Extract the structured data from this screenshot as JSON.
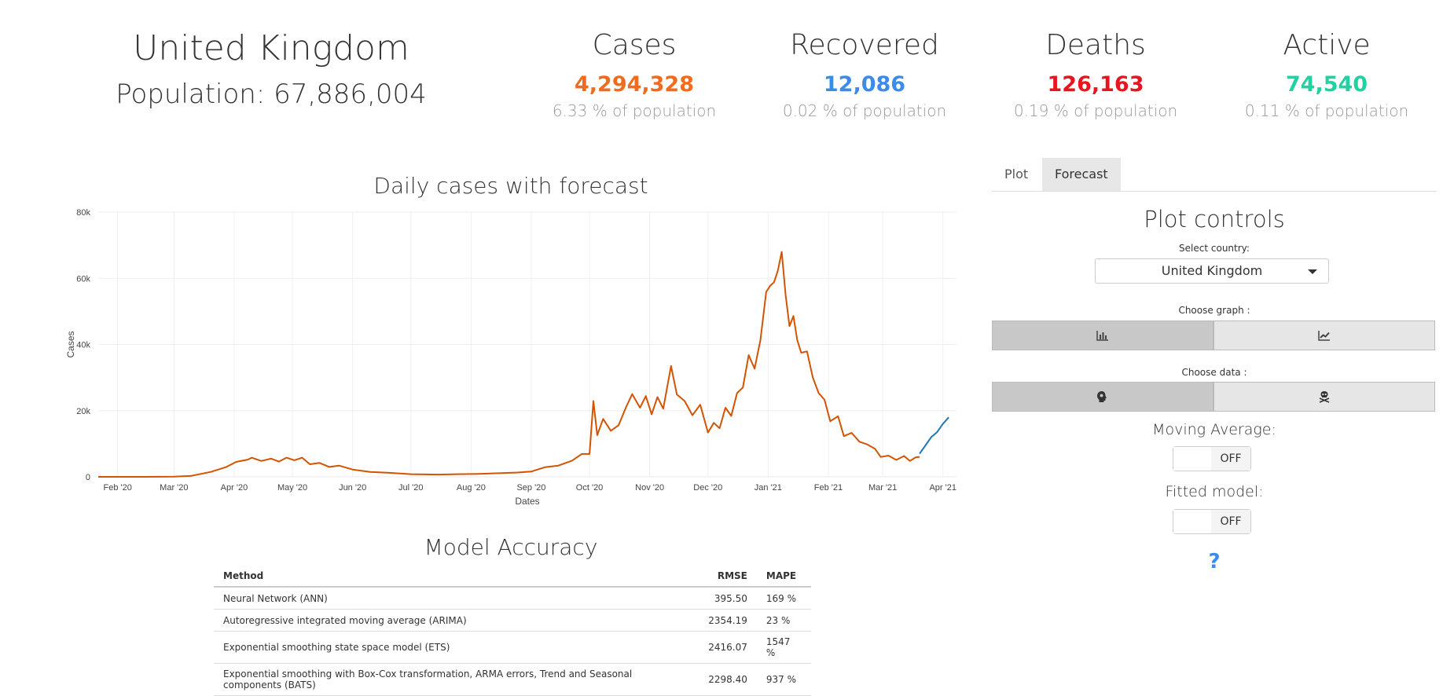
{
  "header": {
    "country": "United Kingdom",
    "population": "Population: 67,886,004",
    "stats": [
      {
        "label": "Cases",
        "value": "4,294,328",
        "pct": "6.33 % of population",
        "color": "#f26b1d"
      },
      {
        "label": "Recovered",
        "value": "12,086",
        "pct": "0.02 % of population",
        "color": "#3b8beb"
      },
      {
        "label": "Deaths",
        "value": "126,163",
        "pct": "0.19 % of population",
        "color": "#e8141f"
      },
      {
        "label": "Active",
        "value": "74,540",
        "pct": "0.11 % of population",
        "color": "#1fd2a1"
      }
    ]
  },
  "chart_data": {
    "type": "line",
    "title": "Daily cases with forecast",
    "xlabel": "Dates",
    "ylabel": "Cases",
    "ylim": [
      0,
      80000
    ],
    "yticks": [
      0,
      20000,
      40000,
      60000,
      80000
    ],
    "ytick_labels": [
      "0",
      "20k",
      "40k",
      "60k",
      "80k"
    ],
    "xticks": [
      "2020-02-01",
      "2020-03-01",
      "2020-04-01",
      "2020-05-01",
      "2020-06-01",
      "2020-07-01",
      "2020-08-01",
      "2020-09-01",
      "2020-10-01",
      "2020-11-01",
      "2020-12-01",
      "2021-01-01",
      "2021-02-01",
      "2021-03-01",
      "2021-04-01"
    ],
    "xtick_labels": [
      "Feb '20",
      "Mar '20",
      "Apr '20",
      "May '20",
      "Jun '20",
      "Jul '20",
      "Aug '20",
      "Sep '20",
      "Oct '20",
      "Nov '20",
      "Dec '20",
      "Jan '21",
      "Feb '21",
      "Mar '21",
      "Apr '21"
    ],
    "xlim": [
      "2020-01-22",
      "2021-04-08"
    ],
    "grid": true,
    "series": [
      {
        "color": "#d35400",
        "points": [
          [
            "2020-01-22",
            0
          ],
          [
            "2020-02-15",
            0
          ],
          [
            "2020-03-01",
            50
          ],
          [
            "2020-03-10",
            300
          ],
          [
            "2020-03-20",
            1500
          ],
          [
            "2020-03-28",
            3000
          ],
          [
            "2020-04-02",
            4500
          ],
          [
            "2020-04-08",
            5200
          ],
          [
            "2020-04-10",
            5800
          ],
          [
            "2020-04-15",
            4800
          ],
          [
            "2020-04-20",
            5500
          ],
          [
            "2020-04-24",
            4600
          ],
          [
            "2020-04-28",
            5800
          ],
          [
            "2020-05-02",
            5000
          ],
          [
            "2020-05-06",
            5800
          ],
          [
            "2020-05-10",
            3800
          ],
          [
            "2020-05-15",
            4200
          ],
          [
            "2020-05-20",
            3000
          ],
          [
            "2020-05-25",
            3400
          ],
          [
            "2020-06-01",
            2200
          ],
          [
            "2020-06-10",
            1500
          ],
          [
            "2020-06-20",
            1200
          ],
          [
            "2020-07-01",
            800
          ],
          [
            "2020-07-15",
            700
          ],
          [
            "2020-07-25",
            800
          ],
          [
            "2020-08-05",
            900
          ],
          [
            "2020-08-15",
            1100
          ],
          [
            "2020-08-25",
            1300
          ],
          [
            "2020-09-01",
            1600
          ],
          [
            "2020-09-08",
            2900
          ],
          [
            "2020-09-15",
            3400
          ],
          [
            "2020-09-22",
            4900
          ],
          [
            "2020-09-27",
            6900
          ],
          [
            "2020-10-01",
            6900
          ],
          [
            "2020-10-03",
            22900
          ],
          [
            "2020-10-05",
            12600
          ],
          [
            "2020-10-08",
            17500
          ],
          [
            "2020-10-12",
            13900
          ],
          [
            "2020-10-16",
            15600
          ],
          [
            "2020-10-20",
            21300
          ],
          [
            "2020-10-23",
            25000
          ],
          [
            "2020-10-27",
            20900
          ],
          [
            "2020-10-30",
            24400
          ],
          [
            "2020-11-02",
            18900
          ],
          [
            "2020-11-05",
            24100
          ],
          [
            "2020-11-08",
            20600
          ],
          [
            "2020-11-12",
            33500
          ],
          [
            "2020-11-15",
            24900
          ],
          [
            "2020-11-19",
            22900
          ],
          [
            "2020-11-23",
            18600
          ],
          [
            "2020-11-27",
            21800
          ],
          [
            "2020-12-01",
            13400
          ],
          [
            "2020-12-04",
            16300
          ],
          [
            "2020-12-07",
            14700
          ],
          [
            "2020-12-10",
            20900
          ],
          [
            "2020-12-13",
            18400
          ],
          [
            "2020-12-16",
            25300
          ],
          [
            "2020-12-19",
            27000
          ],
          [
            "2020-12-22",
            36800
          ],
          [
            "2020-12-25",
            32700
          ],
          [
            "2020-12-28",
            41300
          ],
          [
            "2020-12-31",
            55900
          ],
          [
            "2021-01-02",
            57700
          ],
          [
            "2021-01-04",
            58800
          ],
          [
            "2021-01-06",
            62300
          ],
          [
            "2021-01-08",
            68000
          ],
          [
            "2021-01-10",
            54900
          ],
          [
            "2021-01-12",
            45500
          ],
          [
            "2021-01-14",
            48600
          ],
          [
            "2021-01-16",
            41300
          ],
          [
            "2021-01-18",
            37500
          ],
          [
            "2021-01-21",
            37900
          ],
          [
            "2021-01-24",
            30000
          ],
          [
            "2021-01-27",
            25300
          ],
          [
            "2021-01-30",
            23300
          ],
          [
            "2021-02-02",
            16800
          ],
          [
            "2021-02-06",
            18300
          ],
          [
            "2021-02-09",
            12300
          ],
          [
            "2021-02-13",
            13300
          ],
          [
            "2021-02-17",
            10600
          ],
          [
            "2021-02-21",
            9800
          ],
          [
            "2021-02-25",
            8500
          ],
          [
            "2021-02-28",
            6000
          ],
          [
            "2021-03-04",
            6400
          ],
          [
            "2021-03-08",
            5100
          ],
          [
            "2021-03-12",
            6300
          ],
          [
            "2021-03-15",
            4800
          ],
          [
            "2021-03-18",
            5900
          ],
          [
            "2021-03-20",
            6000
          ]
        ]
      },
      {
        "color": "#1f77b4",
        "points": [
          [
            "2021-03-20",
            7000
          ],
          [
            "2021-03-23",
            9500
          ],
          [
            "2021-03-26",
            12000
          ],
          [
            "2021-03-29",
            13500
          ],
          [
            "2021-04-01",
            16000
          ],
          [
            "2021-04-04",
            18000
          ]
        ]
      }
    ]
  },
  "model_accuracy": {
    "title": "Model Accuracy",
    "columns": [
      "Method",
      "RMSE",
      "MAPE"
    ],
    "rows": [
      [
        "Neural Network (ANN)",
        "395.50",
        "169 %"
      ],
      [
        "Autoregressive integrated moving average (ARIMA)",
        "2354.19",
        "23 %"
      ],
      [
        "Exponential smoothing state space model (ETS)",
        "2416.07",
        "1547 %"
      ],
      [
        "Exponential smoothing with Box-Cox transformation, ARMA errors, Trend and Seasonal components (BATS)",
        "2298.40",
        "937 %"
      ]
    ]
  },
  "panel": {
    "tabs": [
      "Plot",
      "Forecast"
    ],
    "active_tab": "Forecast",
    "title": "Plot controls",
    "select_label": "Select country:",
    "select_value": "United Kingdom",
    "graph_label": "Choose graph :",
    "graph_icons": [
      "bar-chart-icon",
      "line-chart-icon"
    ],
    "data_label": "Choose data :",
    "data_icons": [
      "head-side-virus-icon",
      "skull-crossbones-icon"
    ],
    "moving_average_label": "Moving Average:",
    "moving_average_state": "OFF",
    "fitted_model_label": "Fitted model:",
    "fitted_model_state": "OFF",
    "help": "?"
  }
}
